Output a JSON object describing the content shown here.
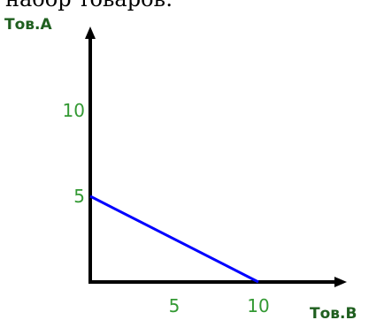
{
  "header": {
    "text": "набор товаров:"
  },
  "colors": {
    "axis": "#000000",
    "line": "#0000ff",
    "tick_text": "#339933",
    "axis_label": "#1f5f1f"
  },
  "chart_data": {
    "type": "line",
    "title": "",
    "xlabel": "Тов.В",
    "ylabel": "Тов.А",
    "xlim": [
      0,
      12
    ],
    "ylim": [
      0,
      14
    ],
    "x_ticks": [
      5,
      10
    ],
    "y_ticks": [
      5,
      10
    ],
    "grid": false,
    "series": [
      {
        "x": [
          0,
          10
        ],
        "y": [
          5,
          0
        ]
      }
    ]
  }
}
